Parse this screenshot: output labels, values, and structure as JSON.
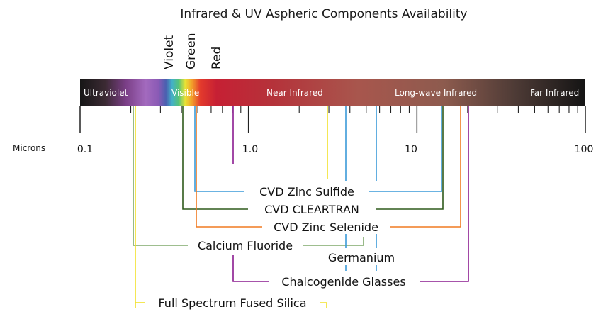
{
  "title": "Infrared & UV Aspheric Components Availability",
  "color_labels": [
    {
      "key": "violet",
      "text": "Violet"
    },
    {
      "key": "green",
      "text": "Green"
    },
    {
      "key": "red",
      "text": "Red"
    }
  ],
  "spectrum_labels": [
    {
      "key": "ultraviolet",
      "text": "Ultraviolet"
    },
    {
      "key": "visible",
      "text": "Visible"
    },
    {
      "key": "near-infrared",
      "text": "Near Infrared"
    },
    {
      "key": "long-wave-infrared",
      "text": "Long-wave Infrared"
    },
    {
      "key": "far-infrared",
      "text": "Far Infrared"
    }
  ],
  "axis": {
    "label": "Microns",
    "scale": "log",
    "range": [
      0.1,
      100
    ],
    "tick_labels": [
      {
        "value": 0.1,
        "text": "0.1"
      },
      {
        "value": 1.0,
        "text": "1.0"
      },
      {
        "value": 10,
        "text": "10"
      },
      {
        "value": 100,
        "text": "100"
      }
    ]
  },
  "materials": [
    {
      "name": "CVD Zinc Sulfide",
      "color": "#3a9ad9",
      "range_um": [
        0.35,
        14
      ],
      "marks_um": [
        3.0,
        5.0
      ]
    },
    {
      "name": "CVD CLEARTRAN",
      "color": "#2f5a1c",
      "range_um": [
        0.3,
        14
      ],
      "marks_um": []
    },
    {
      "name": "CVD Zinc Selenide",
      "color": "#f07a20",
      "range_um": [
        0.35,
        20
      ],
      "marks_um": []
    },
    {
      "name": "Calcium Fluoride",
      "color": "#7fa86a",
      "range_um": [
        0.18,
        8
      ],
      "marks_um": []
    },
    {
      "name": "Germanium",
      "color": "#3a9ad9",
      "range_um": [
        3.0,
        5.0
      ],
      "marks_um": []
    },
    {
      "name": "Chalcogenide Glasses",
      "color": "#8a1a8f",
      "range_um": [
        0.7,
        20
      ],
      "marks_um": []
    },
    {
      "name": "Full Spectrum Fused Silica",
      "color": "#f2e12a",
      "range_um": [
        0.19,
        2.5
      ],
      "marks_um": []
    }
  ]
}
